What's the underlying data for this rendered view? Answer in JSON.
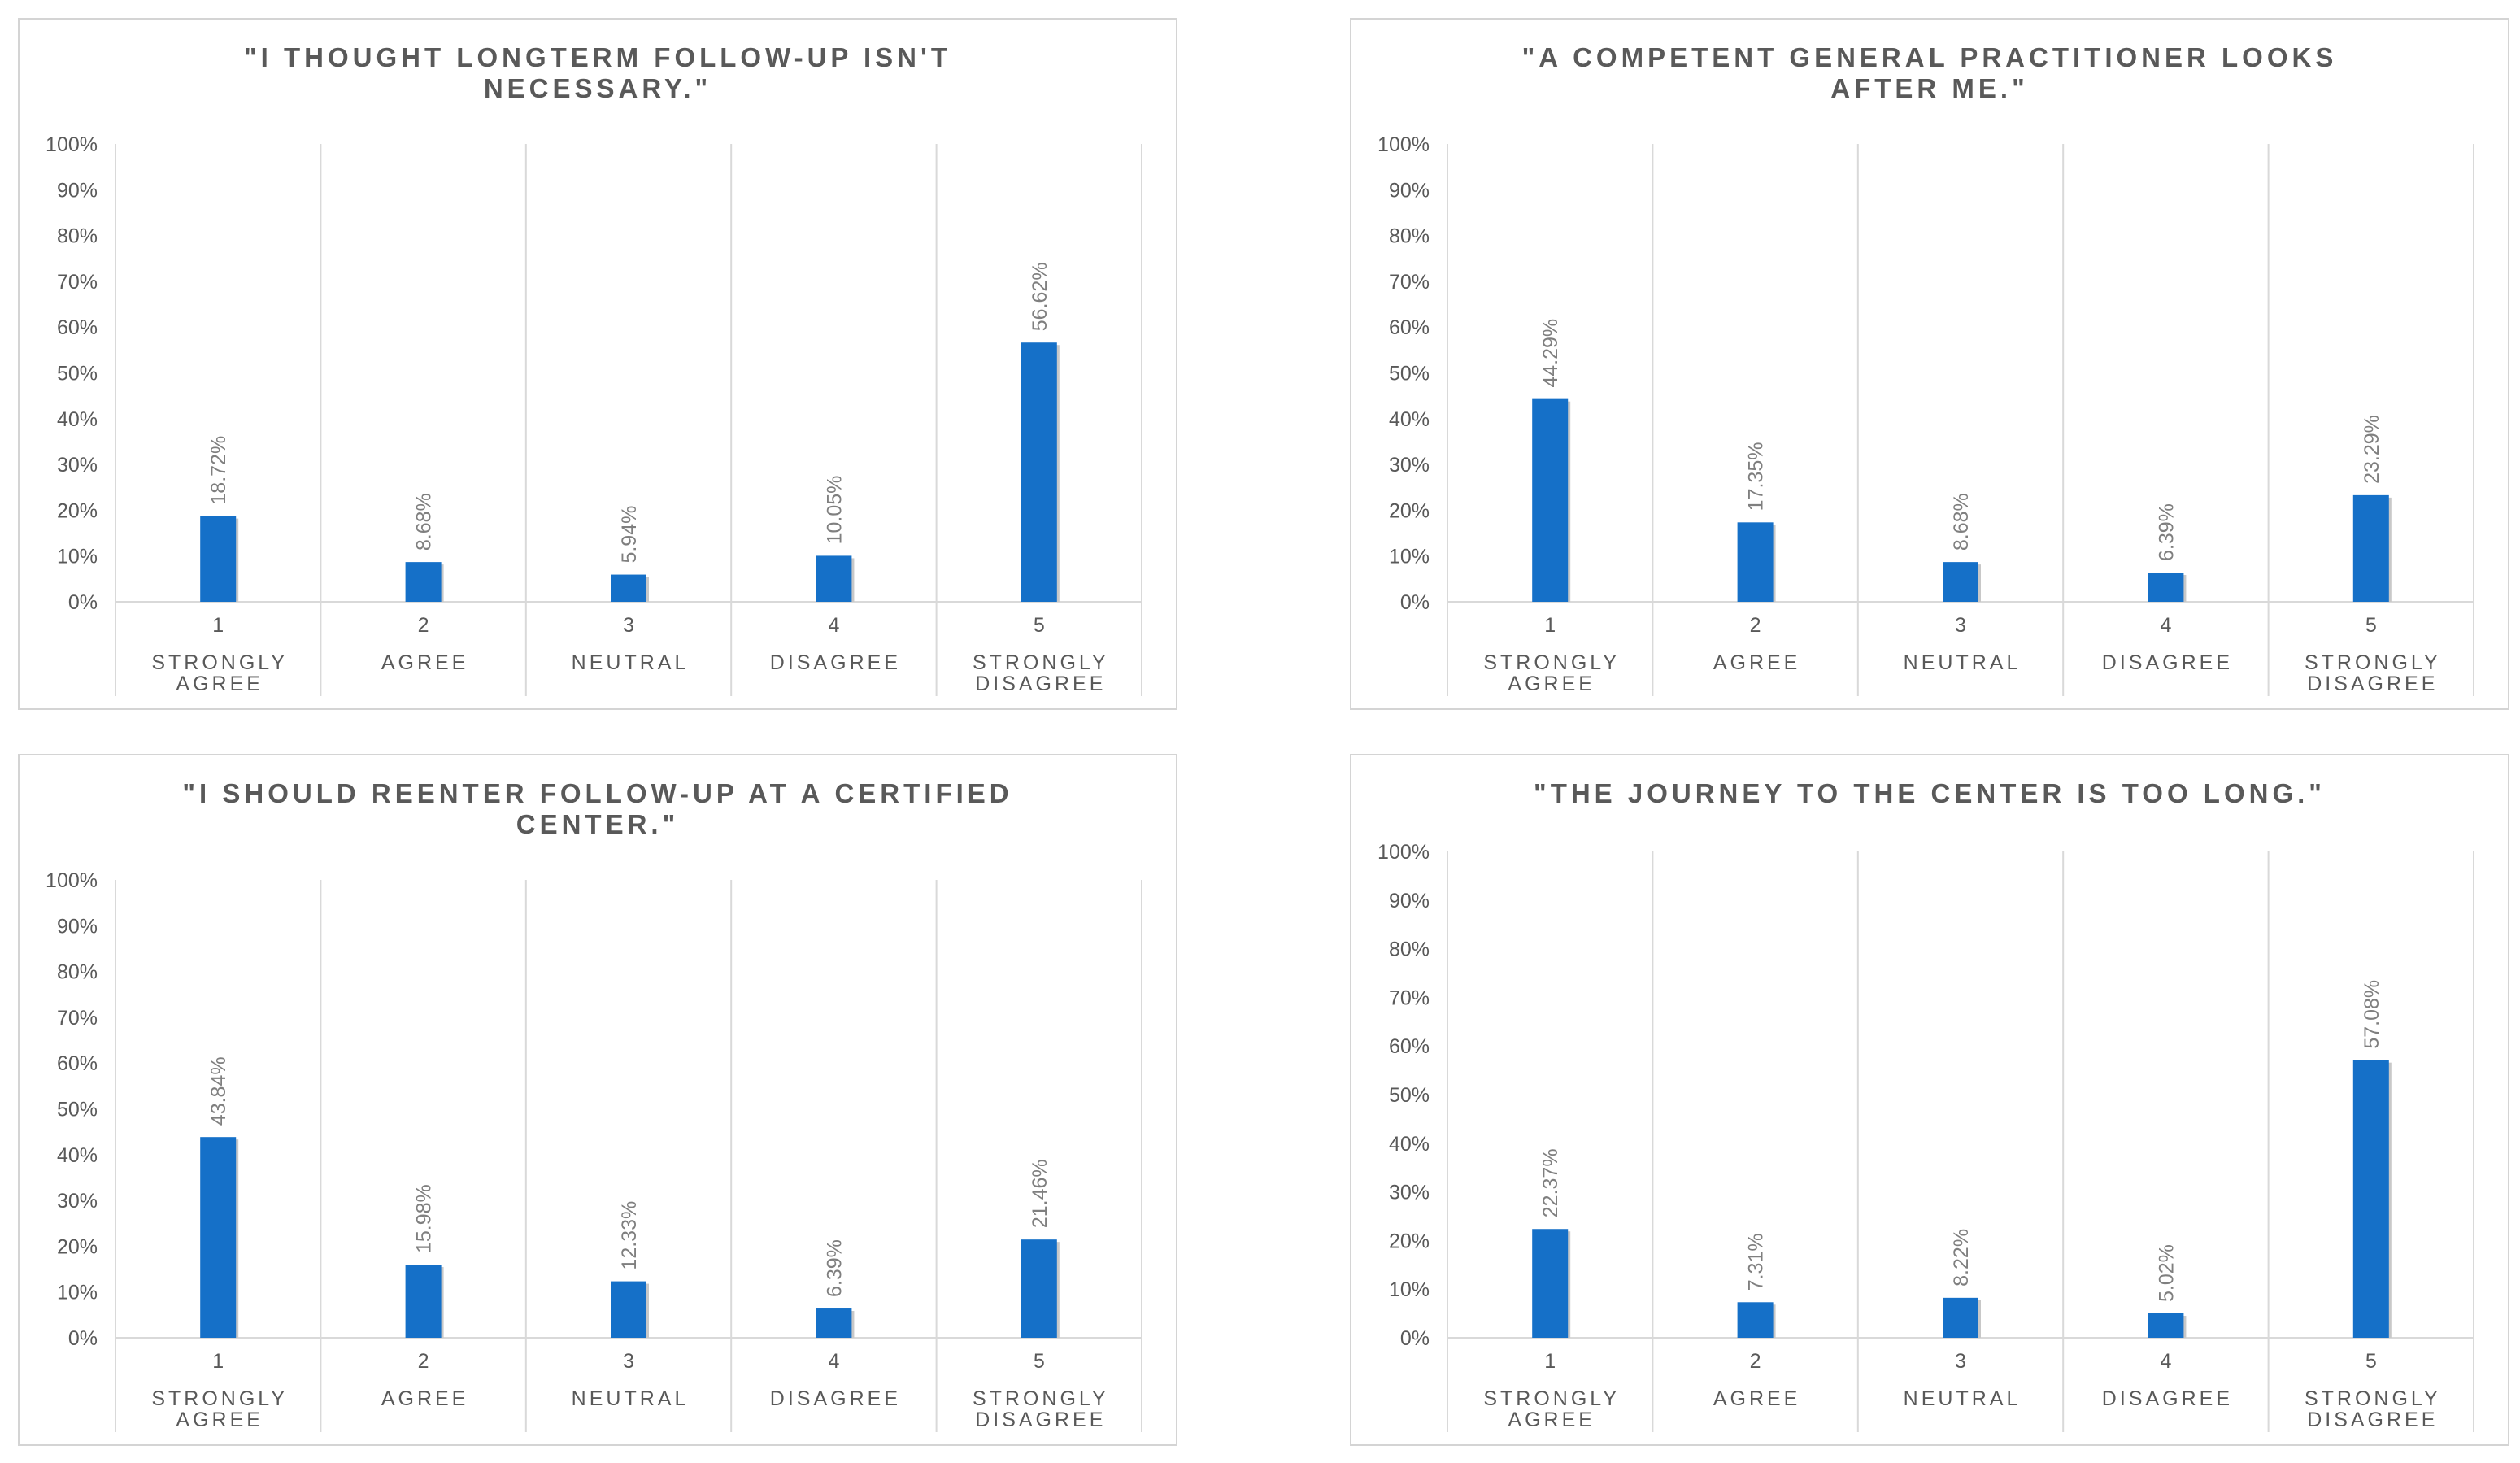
{
  "chart_data": [
    {
      "type": "bar",
      "title": "\"I THOUGHT LONGTERM FOLLOW-UP ISN'T NECESSARY.\"",
      "categories": [
        "1",
        "2",
        "3",
        "4",
        "5"
      ],
      "category_labels": [
        "STRONGLY AGREE",
        "AGREE",
        "NEUTRAL",
        "DISAGREE",
        "STRONGLY DISAGREE"
      ],
      "values": [
        18.72,
        8.68,
        5.94,
        10.05,
        56.62
      ],
      "data_labels": [
        "18.72%",
        "8.68%",
        "5.94%",
        "10.05%",
        "56.62%"
      ],
      "yticks": [
        "0%",
        "10%",
        "20%",
        "30%",
        "40%",
        "50%",
        "60%",
        "70%",
        "80%",
        "90%",
        "100%"
      ],
      "ylim": [
        0,
        100
      ],
      "bar_color": "#1570c8",
      "grid": "vertical"
    },
    {
      "type": "bar",
      "title": "\"A COMPETENT GENERAL PRACTITIONER LOOKS AFTER ME.\"",
      "categories": [
        "1",
        "2",
        "3",
        "4",
        "5"
      ],
      "category_labels": [
        "STRONGLY AGREE",
        "AGREE",
        "NEUTRAL",
        "DISAGREE",
        "STRONGLY DISAGREE"
      ],
      "values": [
        44.29,
        17.35,
        8.68,
        6.39,
        23.29
      ],
      "data_labels": [
        "44.29%",
        "17.35%",
        "8.68%",
        "6.39%",
        "23.29%"
      ],
      "yticks": [
        "0%",
        "10%",
        "20%",
        "30%",
        "40%",
        "50%",
        "60%",
        "70%",
        "80%",
        "90%",
        "100%"
      ],
      "ylim": [
        0,
        100
      ],
      "bar_color": "#1570c8",
      "grid": "vertical"
    },
    {
      "type": "bar",
      "title": "\"I SHOULD REENTER FOLLOW-UP AT A CERTIFIED CENTER.\"",
      "categories": [
        "1",
        "2",
        "3",
        "4",
        "5"
      ],
      "category_labels": [
        "STRONGLY AGREE",
        "AGREE",
        "NEUTRAL",
        "DISAGREE",
        "STRONGLY DISAGREE"
      ],
      "values": [
        43.84,
        15.98,
        12.33,
        6.39,
        21.46
      ],
      "data_labels": [
        "43.84%",
        "15.98%",
        "12.33%",
        "6.39%",
        "21.46%"
      ],
      "yticks": [
        "0%",
        "10%",
        "20%",
        "30%",
        "40%",
        "50%",
        "60%",
        "70%",
        "80%",
        "90%",
        "100%"
      ],
      "ylim": [
        0,
        100
      ],
      "bar_color": "#1570c8",
      "grid": "vertical"
    },
    {
      "type": "bar",
      "title": "\"THE JOURNEY TO THE CENTER IS TOO LONG.\"",
      "categories": [
        "1",
        "2",
        "3",
        "4",
        "5"
      ],
      "category_labels": [
        "STRONGLY AGREE",
        "AGREE",
        "NEUTRAL",
        "DISAGREE",
        "STRONGLY DISAGREE"
      ],
      "values": [
        22.37,
        7.31,
        8.22,
        5.02,
        57.08
      ],
      "data_labels": [
        "22.37%",
        "7.31%",
        "8.22%",
        "5.02%",
        "57.08%"
      ],
      "yticks": [
        "0%",
        "10%",
        "20%",
        "30%",
        "40%",
        "50%",
        "60%",
        "70%",
        "80%",
        "90%",
        "100%"
      ],
      "ylim": [
        0,
        100
      ],
      "bar_color": "#1570c8",
      "grid": "vertical"
    }
  ]
}
